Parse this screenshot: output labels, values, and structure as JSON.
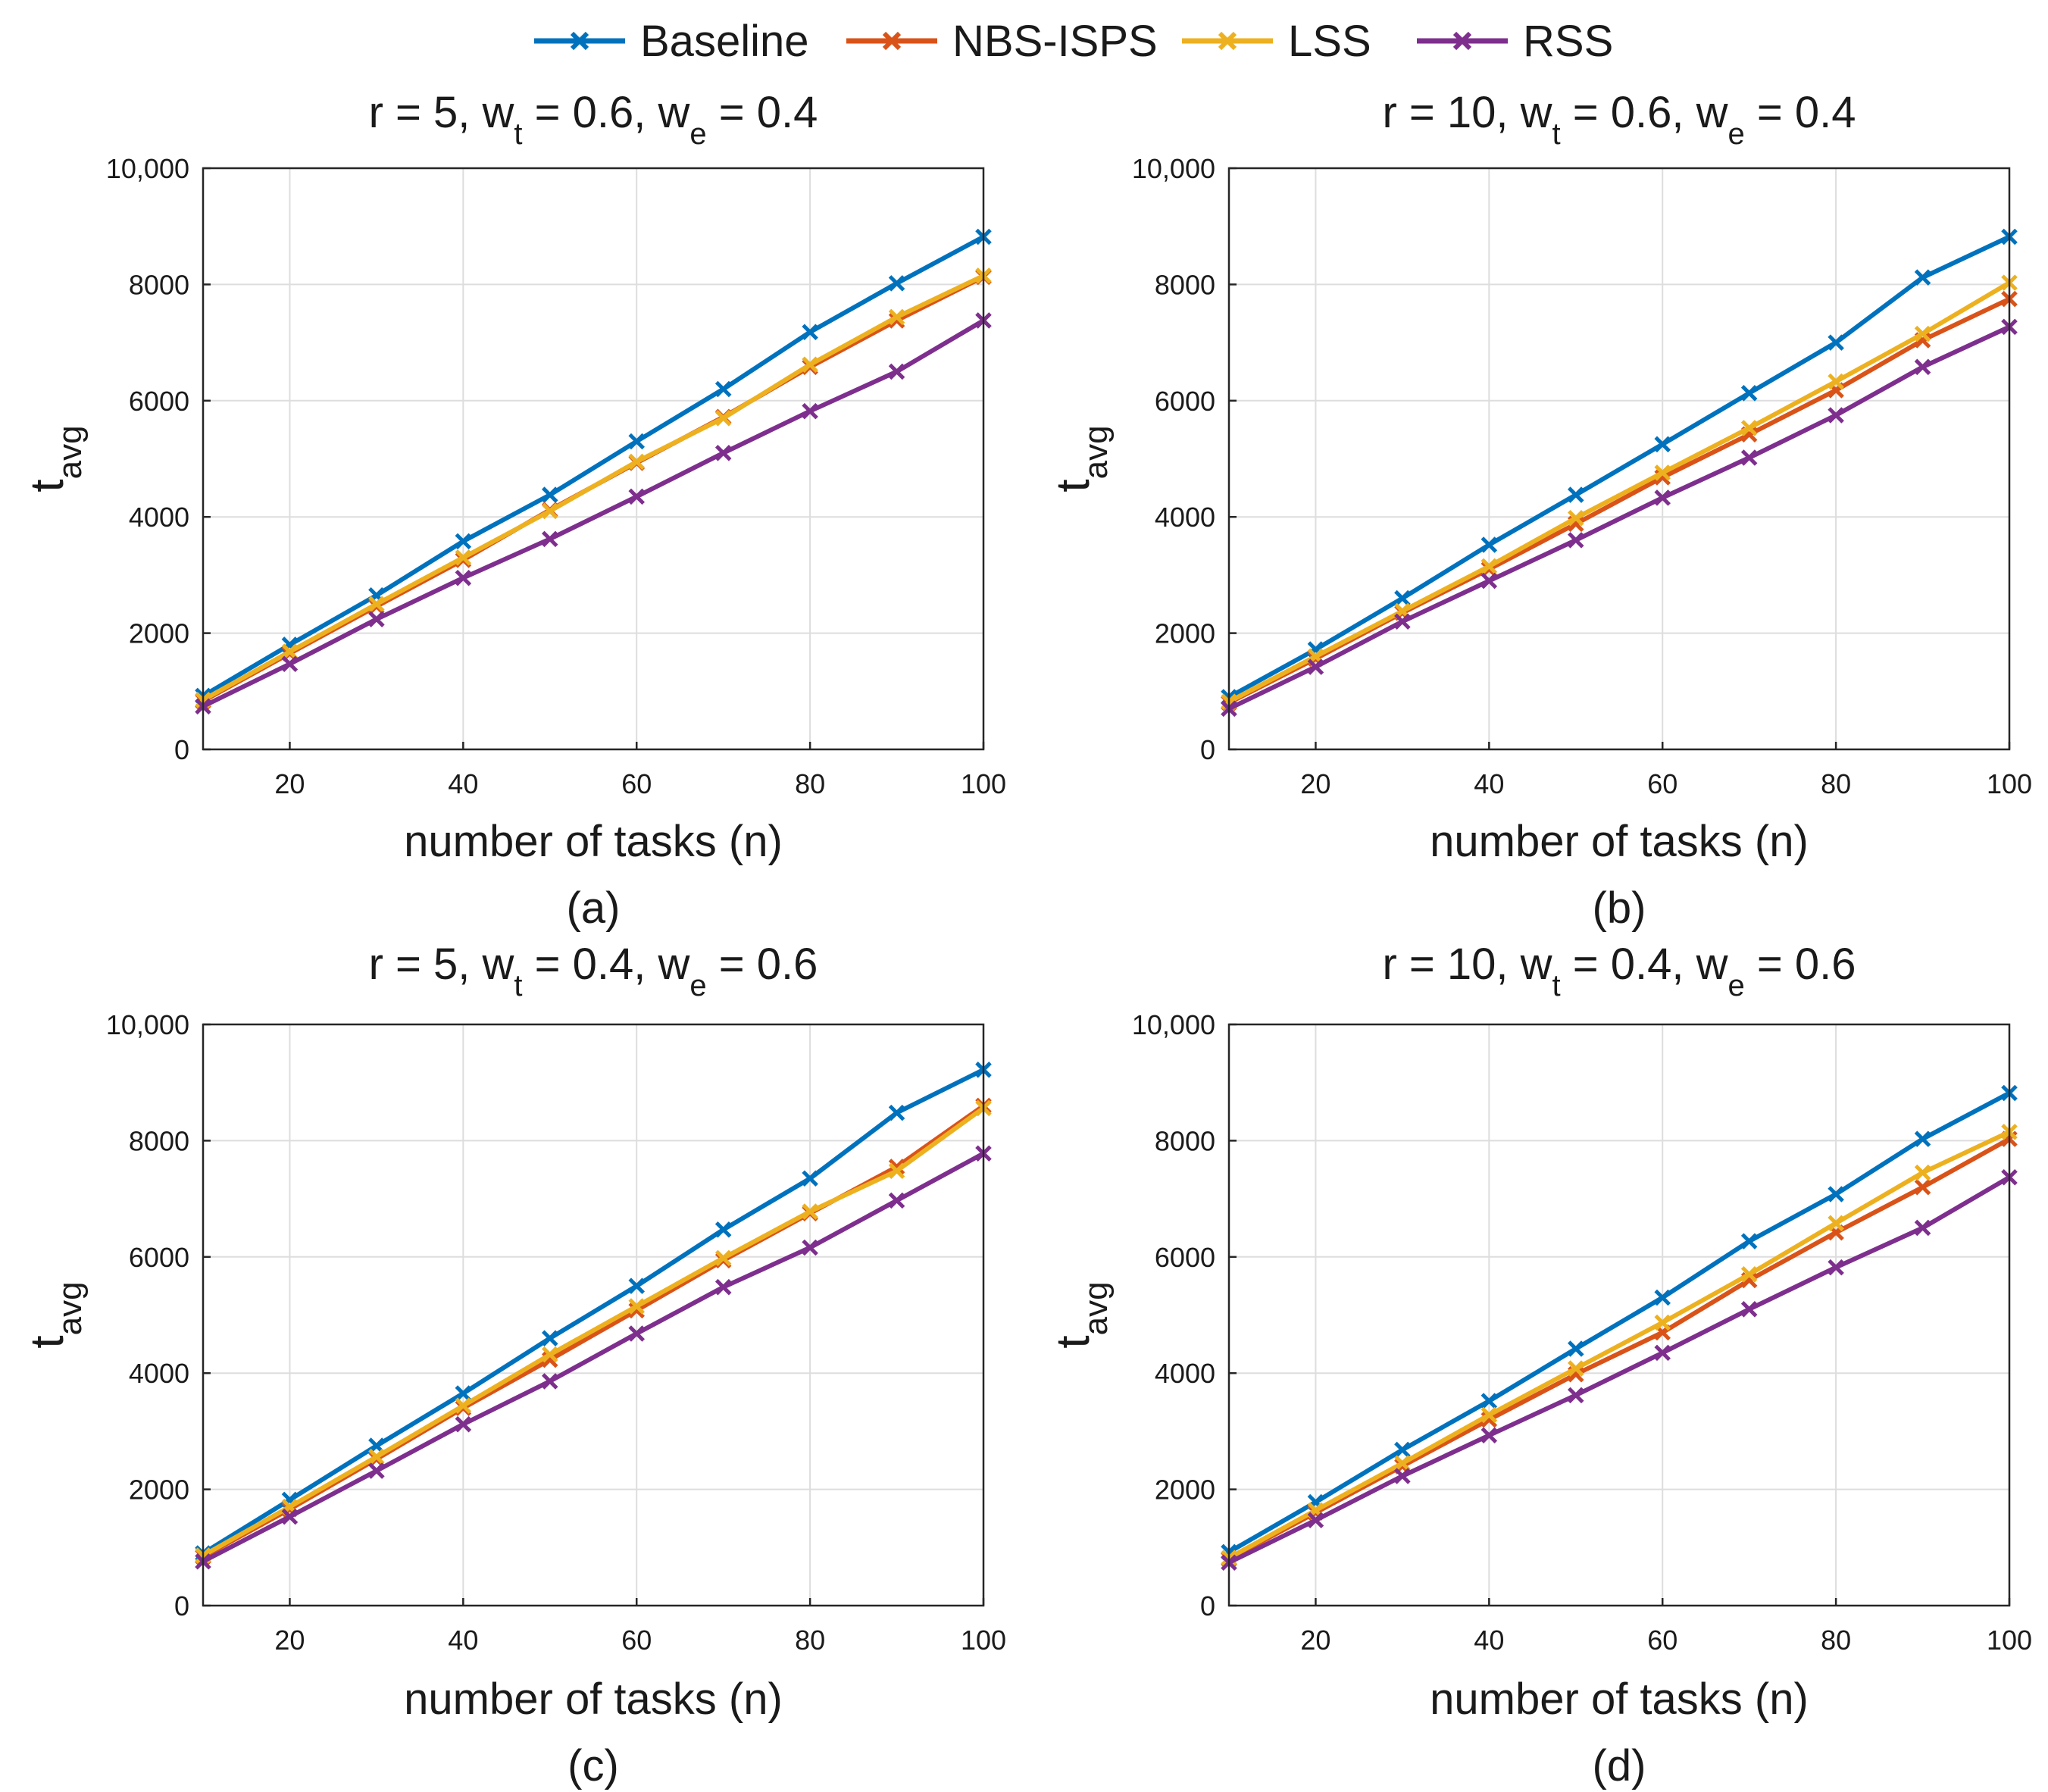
{
  "chart_data": [
    {
      "type": "line",
      "panel_label": "(a)",
      "title_parts": {
        "r": "r = 5, w",
        "t_sub": "t",
        "mid": " = 0.6, w",
        "e_sub": "e",
        "end": " = 0.4"
      },
      "xlabel": "number of tasks (n)",
      "ylabel": "t",
      "ylabel_sub": "avg",
      "xlim": [
        10,
        100
      ],
      "ylim": [
        0,
        10000
      ],
      "xticks": [
        20,
        40,
        60,
        80,
        100
      ],
      "yticks": [
        0,
        2000,
        4000,
        6000,
        8000,
        10000
      ],
      "ytick_labels": [
        "0",
        "2000",
        "4000",
        "6000",
        "8000",
        "10,000"
      ],
      "grid": true,
      "x": [
        10,
        20,
        30,
        40,
        50,
        60,
        70,
        80,
        90,
        100
      ],
      "series": [
        {
          "name": "Baseline",
          "values": [
            920,
            1800,
            2650,
            3580,
            4380,
            5300,
            6200,
            7180,
            8020,
            8820
          ]
        },
        {
          "name": "NBS-ISPS",
          "values": [
            830,
            1650,
            2460,
            3260,
            4120,
            4930,
            5720,
            6580,
            7380,
            8130
          ]
        },
        {
          "name": "LSS",
          "values": [
            850,
            1680,
            2500,
            3300,
            4100,
            4950,
            5700,
            6620,
            7440,
            8150
          ]
        },
        {
          "name": "RSS",
          "values": [
            740,
            1470,
            2240,
            2950,
            3620,
            4350,
            5100,
            5820,
            6500,
            7380
          ]
        }
      ]
    },
    {
      "type": "line",
      "panel_label": "(b)",
      "title_parts": {
        "r": "r = 10, w",
        "t_sub": "t",
        "mid": " = 0.6, w",
        "e_sub": "e",
        "end": " = 0.4"
      },
      "xlabel": "number of tasks  (n)",
      "ylabel": "t",
      "ylabel_sub": "avg",
      "xlim": [
        10,
        100
      ],
      "ylim": [
        0,
        10000
      ],
      "xticks": [
        20,
        40,
        60,
        80,
        100
      ],
      "yticks": [
        0,
        2000,
        4000,
        6000,
        8000,
        10000
      ],
      "ytick_labels": [
        "0",
        "2000",
        "4000",
        "6000",
        "8000",
        "10,000"
      ],
      "grid": true,
      "x": [
        10,
        20,
        30,
        40,
        50,
        60,
        70,
        80,
        90,
        100
      ],
      "series": [
        {
          "name": "Baseline",
          "values": [
            900,
            1720,
            2600,
            3520,
            4380,
            5250,
            6130,
            7000,
            8120,
            8820
          ]
        },
        {
          "name": "NBS-ISPS",
          "values": [
            800,
            1560,
            2350,
            3100,
            3880,
            4680,
            5420,
            6180,
            7040,
            7750
          ]
        },
        {
          "name": "LSS",
          "values": [
            820,
            1600,
            2380,
            3150,
            3980,
            4760,
            5530,
            6330,
            7150,
            8030
          ]
        },
        {
          "name": "RSS",
          "values": [
            700,
            1420,
            2200,
            2900,
            3600,
            4330,
            5020,
            5750,
            6580,
            7270
          ]
        }
      ]
    },
    {
      "type": "line",
      "panel_label": "(c)",
      "title_parts": {
        "r": "r = 5, w",
        "t_sub": "t",
        "mid": " = 0.4, w",
        "e_sub": "e",
        "end": " = 0.6"
      },
      "xlabel": "number of tasks  (n)",
      "ylabel": "t",
      "ylabel_sub": "avg",
      "xlim": [
        10,
        100
      ],
      "ylim": [
        0,
        10000
      ],
      "xticks": [
        20,
        40,
        60,
        80,
        100
      ],
      "yticks": [
        0,
        2000,
        4000,
        6000,
        8000,
        10000
      ],
      "ytick_labels": [
        "0",
        "2000",
        "4000",
        "6000",
        "8000",
        "10,000"
      ],
      "grid": true,
      "x": [
        10,
        20,
        30,
        40,
        50,
        60,
        70,
        80,
        90,
        100
      ],
      "series": [
        {
          "name": "Baseline",
          "values": [
            900,
            1820,
            2750,
            3650,
            4600,
            5500,
            6470,
            7350,
            8480,
            9220
          ]
        },
        {
          "name": "NBS-ISPS",
          "values": [
            840,
            1660,
            2520,
            3400,
            4230,
            5080,
            5940,
            6750,
            7550,
            8600
          ]
        },
        {
          "name": "LSS",
          "values": [
            860,
            1700,
            2560,
            3440,
            4320,
            5150,
            5980,
            6780,
            7480,
            8560
          ]
        },
        {
          "name": "RSS",
          "values": [
            760,
            1530,
            2320,
            3120,
            3860,
            4680,
            5480,
            6160,
            6970,
            7780
          ]
        }
      ]
    },
    {
      "type": "line",
      "panel_label": "(d)",
      "title_parts": {
        "r": "r = 10, w",
        "t_sub": "t",
        "mid": " = 0.4, w",
        "e_sub": "e",
        "end": " = 0.6"
      },
      "xlabel": "number of tasks  (n)",
      "ylabel": "t",
      "ylabel_sub": "avg",
      "xlim": [
        10,
        100
      ],
      "ylim": [
        0,
        10000
      ],
      "xticks": [
        20,
        40,
        60,
        80,
        100
      ],
      "yticks": [
        0,
        2000,
        4000,
        6000,
        8000,
        10000
      ],
      "ytick_labels": [
        "0",
        "2000",
        "4000",
        "6000",
        "8000",
        "10,000"
      ],
      "grid": true,
      "x": [
        10,
        20,
        30,
        40,
        50,
        60,
        70,
        80,
        90,
        100
      ],
      "series": [
        {
          "name": "Baseline",
          "values": [
            920,
            1780,
            2680,
            3520,
            4420,
            5300,
            6270,
            7080,
            8030,
            8820
          ]
        },
        {
          "name": "NBS-ISPS",
          "values": [
            800,
            1600,
            2400,
            3200,
            3980,
            4700,
            5600,
            6420,
            7200,
            8030
          ]
        },
        {
          "name": "LSS",
          "values": [
            820,
            1640,
            2450,
            3280,
            4080,
            4870,
            5700,
            6580,
            7450,
            8150
          ]
        },
        {
          "name": "RSS",
          "values": [
            740,
            1470,
            2230,
            2930,
            3620,
            4350,
            5100,
            5820,
            6500,
            7370
          ]
        }
      ]
    }
  ],
  "legend": {
    "position": "top-center",
    "entries": [
      {
        "name": "Baseline",
        "color": "#0072BD"
      },
      {
        "name": "NBS-ISPS",
        "color": "#D95319"
      },
      {
        "name": "LSS",
        "color": "#EDB120"
      },
      {
        "name": "RSS",
        "color": "#7E2F8E"
      }
    ]
  },
  "marker": "x"
}
